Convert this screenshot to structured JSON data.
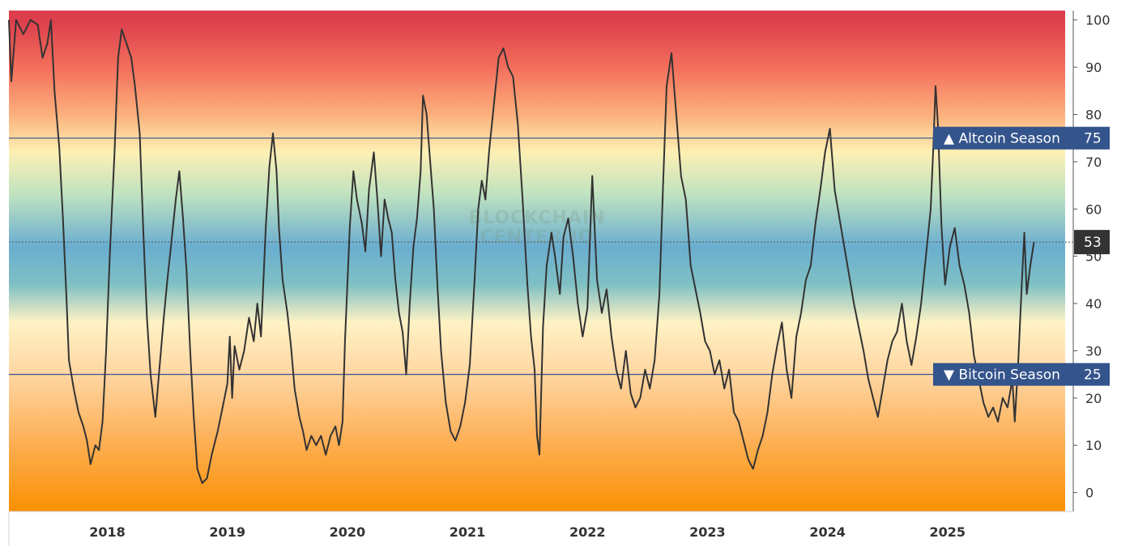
{
  "chart_data": {
    "type": "line",
    "title": "",
    "xlabel": "",
    "ylabel": "",
    "watermark": [
      "BLOCKCHAIN",
      "CENTER.IO"
    ],
    "ylim": [
      -4,
      102
    ],
    "y_ticks": [
      0,
      10,
      20,
      30,
      40,
      50,
      60,
      70,
      80,
      90,
      100
    ],
    "x_range": [
      2017.18,
      2025.98
    ],
    "x_ticks": [
      {
        "label": "2018",
        "x": 2018.0
      },
      {
        "label": "2019",
        "x": 2019.0
      },
      {
        "label": "2020",
        "x": 2020.0
      },
      {
        "label": "2021",
        "x": 2021.0
      },
      {
        "label": "2022",
        "x": 2022.0
      },
      {
        "label": "2023",
        "x": 2023.0
      },
      {
        "label": "2024",
        "x": 2024.0
      },
      {
        "label": "2025",
        "x": 2025.0
      }
    ],
    "thresholds": [
      {
        "name": "Altcoin Season",
        "value": 75,
        "label": "75",
        "symbol": "▲",
        "color": "#34548c"
      },
      {
        "name": "Bitcoin Season",
        "value": 25,
        "label": "25",
        "symbol": "▼",
        "color": "#34548c"
      }
    ],
    "current": {
      "value": 53,
      "label": "53",
      "color": "#333333"
    },
    "background_gradient": [
      {
        "value": 100,
        "color": "#dc3e4c"
      },
      {
        "value": 90,
        "color": "#f36e5c"
      },
      {
        "value": 80,
        "color": "#fcb07c"
      },
      {
        "value": 72,
        "color": "#fdf0b4"
      },
      {
        "value": 63,
        "color": "#bfe2c0"
      },
      {
        "value": 52,
        "color": "#6aaed0"
      },
      {
        "value": 44,
        "color": "#7fc0c4"
      },
      {
        "value": 36,
        "color": "#fff2c4"
      },
      {
        "value": 25,
        "color": "#ffd6a2"
      },
      {
        "value": 12,
        "color": "#fdb25c"
      },
      {
        "value": -4,
        "color": "#fb9000"
      }
    ],
    "series": [
      {
        "color": "#333333",
        "points": [
          [
            2017.18,
            100
          ],
          [
            2017.2,
            87
          ],
          [
            2017.24,
            100
          ],
          [
            2017.3,
            97
          ],
          [
            2017.36,
            100
          ],
          [
            2017.42,
            99
          ],
          [
            2017.46,
            92
          ],
          [
            2017.5,
            95
          ],
          [
            2017.53,
            100
          ],
          [
            2017.56,
            85
          ],
          [
            2017.6,
            73
          ],
          [
            2017.63,
            58
          ],
          [
            2017.66,
            41
          ],
          [
            2017.68,
            28
          ],
          [
            2017.72,
            22
          ],
          [
            2017.76,
            17
          ],
          [
            2017.8,
            14
          ],
          [
            2017.83,
            11
          ],
          [
            2017.86,
            6
          ],
          [
            2017.9,
            10
          ],
          [
            2017.93,
            9
          ],
          [
            2017.96,
            15
          ],
          [
            2017.99,
            30
          ],
          [
            2018.02,
            50
          ],
          [
            2018.06,
            72
          ],
          [
            2018.09,
            92
          ],
          [
            2018.12,
            98
          ],
          [
            2018.16,
            95
          ],
          [
            2018.2,
            92
          ],
          [
            2018.23,
            86
          ],
          [
            2018.27,
            76
          ],
          [
            2018.3,
            55
          ],
          [
            2018.33,
            37
          ],
          [
            2018.36,
            25
          ],
          [
            2018.4,
            16
          ],
          [
            2018.43,
            25
          ],
          [
            2018.47,
            37
          ],
          [
            2018.5,
            45
          ],
          [
            2018.53,
            52
          ],
          [
            2018.57,
            62
          ],
          [
            2018.6,
            68
          ],
          [
            2018.63,
            58
          ],
          [
            2018.66,
            47
          ],
          [
            2018.69,
            30
          ],
          [
            2018.72,
            16
          ],
          [
            2018.75,
            5
          ],
          [
            2018.79,
            2
          ],
          [
            2018.83,
            3
          ],
          [
            2018.87,
            8
          ],
          [
            2018.92,
            13
          ],
          [
            2018.96,
            18
          ],
          [
            2019.0,
            23
          ],
          [
            2019.02,
            33
          ],
          [
            2019.04,
            20
          ],
          [
            2019.06,
            31
          ],
          [
            2019.1,
            26
          ],
          [
            2019.14,
            30
          ],
          [
            2019.18,
            37
          ],
          [
            2019.22,
            32
          ],
          [
            2019.25,
            40
          ],
          [
            2019.28,
            33
          ],
          [
            2019.32,
            56
          ],
          [
            2019.35,
            69
          ],
          [
            2019.38,
            76
          ],
          [
            2019.41,
            68
          ],
          [
            2019.43,
            56
          ],
          [
            2019.46,
            45
          ],
          [
            2019.5,
            38
          ],
          [
            2019.53,
            31
          ],
          [
            2019.56,
            22
          ],
          [
            2019.6,
            16
          ],
          [
            2019.63,
            13
          ],
          [
            2019.66,
            9
          ],
          [
            2019.7,
            12
          ],
          [
            2019.74,
            10
          ],
          [
            2019.78,
            12
          ],
          [
            2019.82,
            8
          ],
          [
            2019.86,
            12
          ],
          [
            2019.9,
            14
          ],
          [
            2019.93,
            10
          ],
          [
            2019.96,
            15
          ],
          [
            2019.98,
            32
          ],
          [
            2020.02,
            56
          ],
          [
            2020.05,
            68
          ],
          [
            2020.08,
            62
          ],
          [
            2020.12,
            57
          ],
          [
            2020.15,
            51
          ],
          [
            2020.18,
            64
          ],
          [
            2020.22,
            72
          ],
          [
            2020.25,
            62
          ],
          [
            2020.28,
            50
          ],
          [
            2020.31,
            62
          ],
          [
            2020.34,
            58
          ],
          [
            2020.37,
            55
          ],
          [
            2020.4,
            45
          ],
          [
            2020.43,
            38
          ],
          [
            2020.46,
            34
          ],
          [
            2020.49,
            25
          ],
          [
            2020.52,
            40
          ],
          [
            2020.55,
            52
          ],
          [
            2020.58,
            58
          ],
          [
            2020.61,
            68
          ],
          [
            2020.63,
            84
          ],
          [
            2020.66,
            80
          ],
          [
            2020.69,
            70
          ],
          [
            2020.72,
            60
          ],
          [
            2020.75,
            44
          ],
          [
            2020.78,
            30
          ],
          [
            2020.82,
            19
          ],
          [
            2020.86,
            13
          ],
          [
            2020.9,
            11
          ],
          [
            2020.94,
            14
          ],
          [
            2020.98,
            19
          ],
          [
            2021.02,
            27
          ],
          [
            2021.06,
            45
          ],
          [
            2021.09,
            60
          ],
          [
            2021.12,
            66
          ],
          [
            2021.15,
            62
          ],
          [
            2021.18,
            72
          ],
          [
            2021.22,
            82
          ],
          [
            2021.26,
            92
          ],
          [
            2021.3,
            94
          ],
          [
            2021.34,
            90
          ],
          [
            2021.38,
            88
          ],
          [
            2021.42,
            78
          ],
          [
            2021.46,
            62
          ],
          [
            2021.5,
            44
          ],
          [
            2021.53,
            33
          ],
          [
            2021.56,
            26
          ],
          [
            2021.58,
            12
          ],
          [
            2021.6,
            8
          ],
          [
            2021.63,
            35
          ],
          [
            2021.66,
            48
          ],
          [
            2021.7,
            55
          ],
          [
            2021.73,
            50
          ],
          [
            2021.77,
            42
          ],
          [
            2021.8,
            54
          ],
          [
            2021.84,
            58
          ],
          [
            2021.88,
            50
          ],
          [
            2021.92,
            40
          ],
          [
            2021.96,
            33
          ],
          [
            2022.0,
            39
          ],
          [
            2022.04,
            67
          ],
          [
            2022.08,
            45
          ],
          [
            2022.12,
            38
          ],
          [
            2022.16,
            43
          ],
          [
            2022.2,
            33
          ],
          [
            2022.24,
            26
          ],
          [
            2022.28,
            22
          ],
          [
            2022.32,
            30
          ],
          [
            2022.36,
            21
          ],
          [
            2022.4,
            18
          ],
          [
            2022.44,
            20
          ],
          [
            2022.48,
            26
          ],
          [
            2022.52,
            22
          ],
          [
            2022.56,
            28
          ],
          [
            2022.6,
            42
          ],
          [
            2022.63,
            65
          ],
          [
            2022.66,
            86
          ],
          [
            2022.7,
            93
          ],
          [
            2022.74,
            80
          ],
          [
            2022.78,
            67
          ],
          [
            2022.82,
            62
          ],
          [
            2022.86,
            48
          ],
          [
            2022.9,
            43
          ],
          [
            2022.94,
            38
          ],
          [
            2022.98,
            32
          ],
          [
            2023.02,
            30
          ],
          [
            2023.06,
            25
          ],
          [
            2023.1,
            28
          ],
          [
            2023.14,
            22
          ],
          [
            2023.18,
            26
          ],
          [
            2023.22,
            17
          ],
          [
            2023.26,
            15
          ],
          [
            2023.3,
            11
          ],
          [
            2023.34,
            7
          ],
          [
            2023.38,
            5
          ],
          [
            2023.42,
            9
          ],
          [
            2023.46,
            12
          ],
          [
            2023.5,
            17
          ],
          [
            2023.54,
            25
          ],
          [
            2023.58,
            31
          ],
          [
            2023.62,
            36
          ],
          [
            2023.66,
            26
          ],
          [
            2023.7,
            20
          ],
          [
            2023.74,
            33
          ],
          [
            2023.78,
            38
          ],
          [
            2023.82,
            45
          ],
          [
            2023.86,
            48
          ],
          [
            2023.9,
            57
          ],
          [
            2023.94,
            64
          ],
          [
            2023.98,
            72
          ],
          [
            2024.02,
            77
          ],
          [
            2024.06,
            64
          ],
          [
            2024.1,
            58
          ],
          [
            2024.14,
            52
          ],
          [
            2024.18,
            46
          ],
          [
            2024.22,
            40
          ],
          [
            2024.26,
            35
          ],
          [
            2024.3,
            30
          ],
          [
            2024.34,
            24
          ],
          [
            2024.38,
            20
          ],
          [
            2024.42,
            16
          ],
          [
            2024.46,
            22
          ],
          [
            2024.5,
            28
          ],
          [
            2024.54,
            32
          ],
          [
            2024.58,
            34
          ],
          [
            2024.62,
            40
          ],
          [
            2024.66,
            32
          ],
          [
            2024.7,
            27
          ],
          [
            2024.74,
            33
          ],
          [
            2024.78,
            40
          ],
          [
            2024.82,
            50
          ],
          [
            2024.86,
            60
          ],
          [
            2024.88,
            72
          ],
          [
            2024.9,
            86
          ],
          [
            2024.92,
            78
          ],
          [
            2024.95,
            56
          ],
          [
            2024.98,
            44
          ],
          [
            2025.02,
            52
          ],
          [
            2025.06,
            56
          ],
          [
            2025.1,
            48
          ],
          [
            2025.14,
            44
          ],
          [
            2025.18,
            38
          ],
          [
            2025.22,
            29
          ],
          [
            2025.26,
            24
          ],
          [
            2025.3,
            19
          ],
          [
            2025.34,
            16
          ],
          [
            2025.38,
            18
          ],
          [
            2025.42,
            15
          ],
          [
            2025.46,
            20
          ],
          [
            2025.5,
            18
          ],
          [
            2025.54,
            24
          ],
          [
            2025.56,
            15
          ],
          [
            2025.59,
            28
          ],
          [
            2025.62,
            45
          ],
          [
            2025.64,
            55
          ],
          [
            2025.66,
            42
          ],
          [
            2025.69,
            48
          ],
          [
            2025.72,
            53
          ]
        ]
      }
    ]
  }
}
